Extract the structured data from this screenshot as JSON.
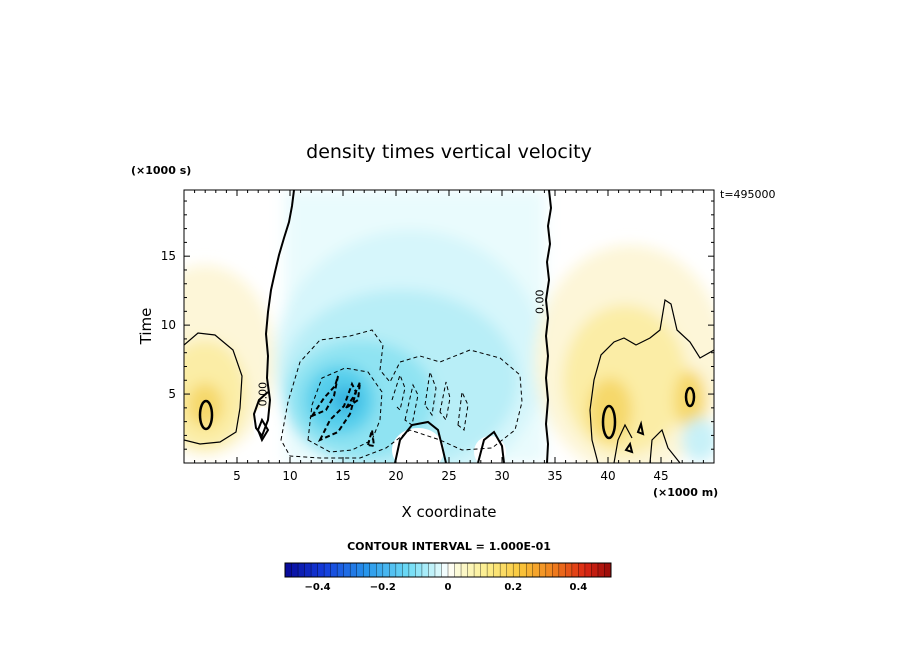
{
  "chart_data": {
    "type": "heatmap",
    "title": "density times vertical velocity",
    "xlabel": "X coordinate",
    "ylabel": "Time",
    "x_unit": "(×1000 m)",
    "y_unit": "(×1000 s)",
    "time_stamp": "t=495000",
    "xlim": [
      0,
      50
    ],
    "ylim": [
      0,
      19.8
    ],
    "x_ticks": [
      5,
      10,
      15,
      20,
      25,
      30,
      35,
      40,
      45
    ],
    "x_tick_labels": [
      "5",
      "10",
      "15",
      "20",
      "25",
      "30",
      "35",
      "40",
      "45"
    ],
    "y_ticks": [
      5,
      10,
      15
    ],
    "y_tick_labels": [
      "5",
      "10",
      "15"
    ],
    "contour_interval_label": "CONTOUR INTERVAL = 1.000E-01",
    "contour_labels": [
      {
        "text": "0.00",
        "x": 7.8,
        "y": 5.0
      },
      {
        "text": "0.00",
        "x": 33.9,
        "y": 11.7
      }
    ],
    "colorbar": {
      "min": -0.5,
      "max": 0.5,
      "ticks": [
        -0.4,
        -0.2,
        0,
        0.2,
        0.4
      ],
      "tick_labels": [
        "−0.4",
        "−0.2",
        "0",
        "0.2",
        "0.4"
      ]
    },
    "regions": [
      {
        "name": "left-positive-cell",
        "center": [
          2,
          4
        ],
        "radius": [
          6,
          10
        ],
        "peak": 0.15
      },
      {
        "name": "central-negative-cell",
        "center": [
          22,
          9
        ],
        "radius": [
          12,
          12
        ],
        "peak": -0.12
      },
      {
        "name": "lower-negative-core",
        "center": [
          15,
          4.5
        ],
        "radius": [
          4,
          3
        ],
        "peak": -0.22
      },
      {
        "name": "right-positive-cell",
        "center": [
          44,
          6
        ],
        "radius": [
          9,
          11
        ],
        "peak": 0.14
      }
    ]
  }
}
